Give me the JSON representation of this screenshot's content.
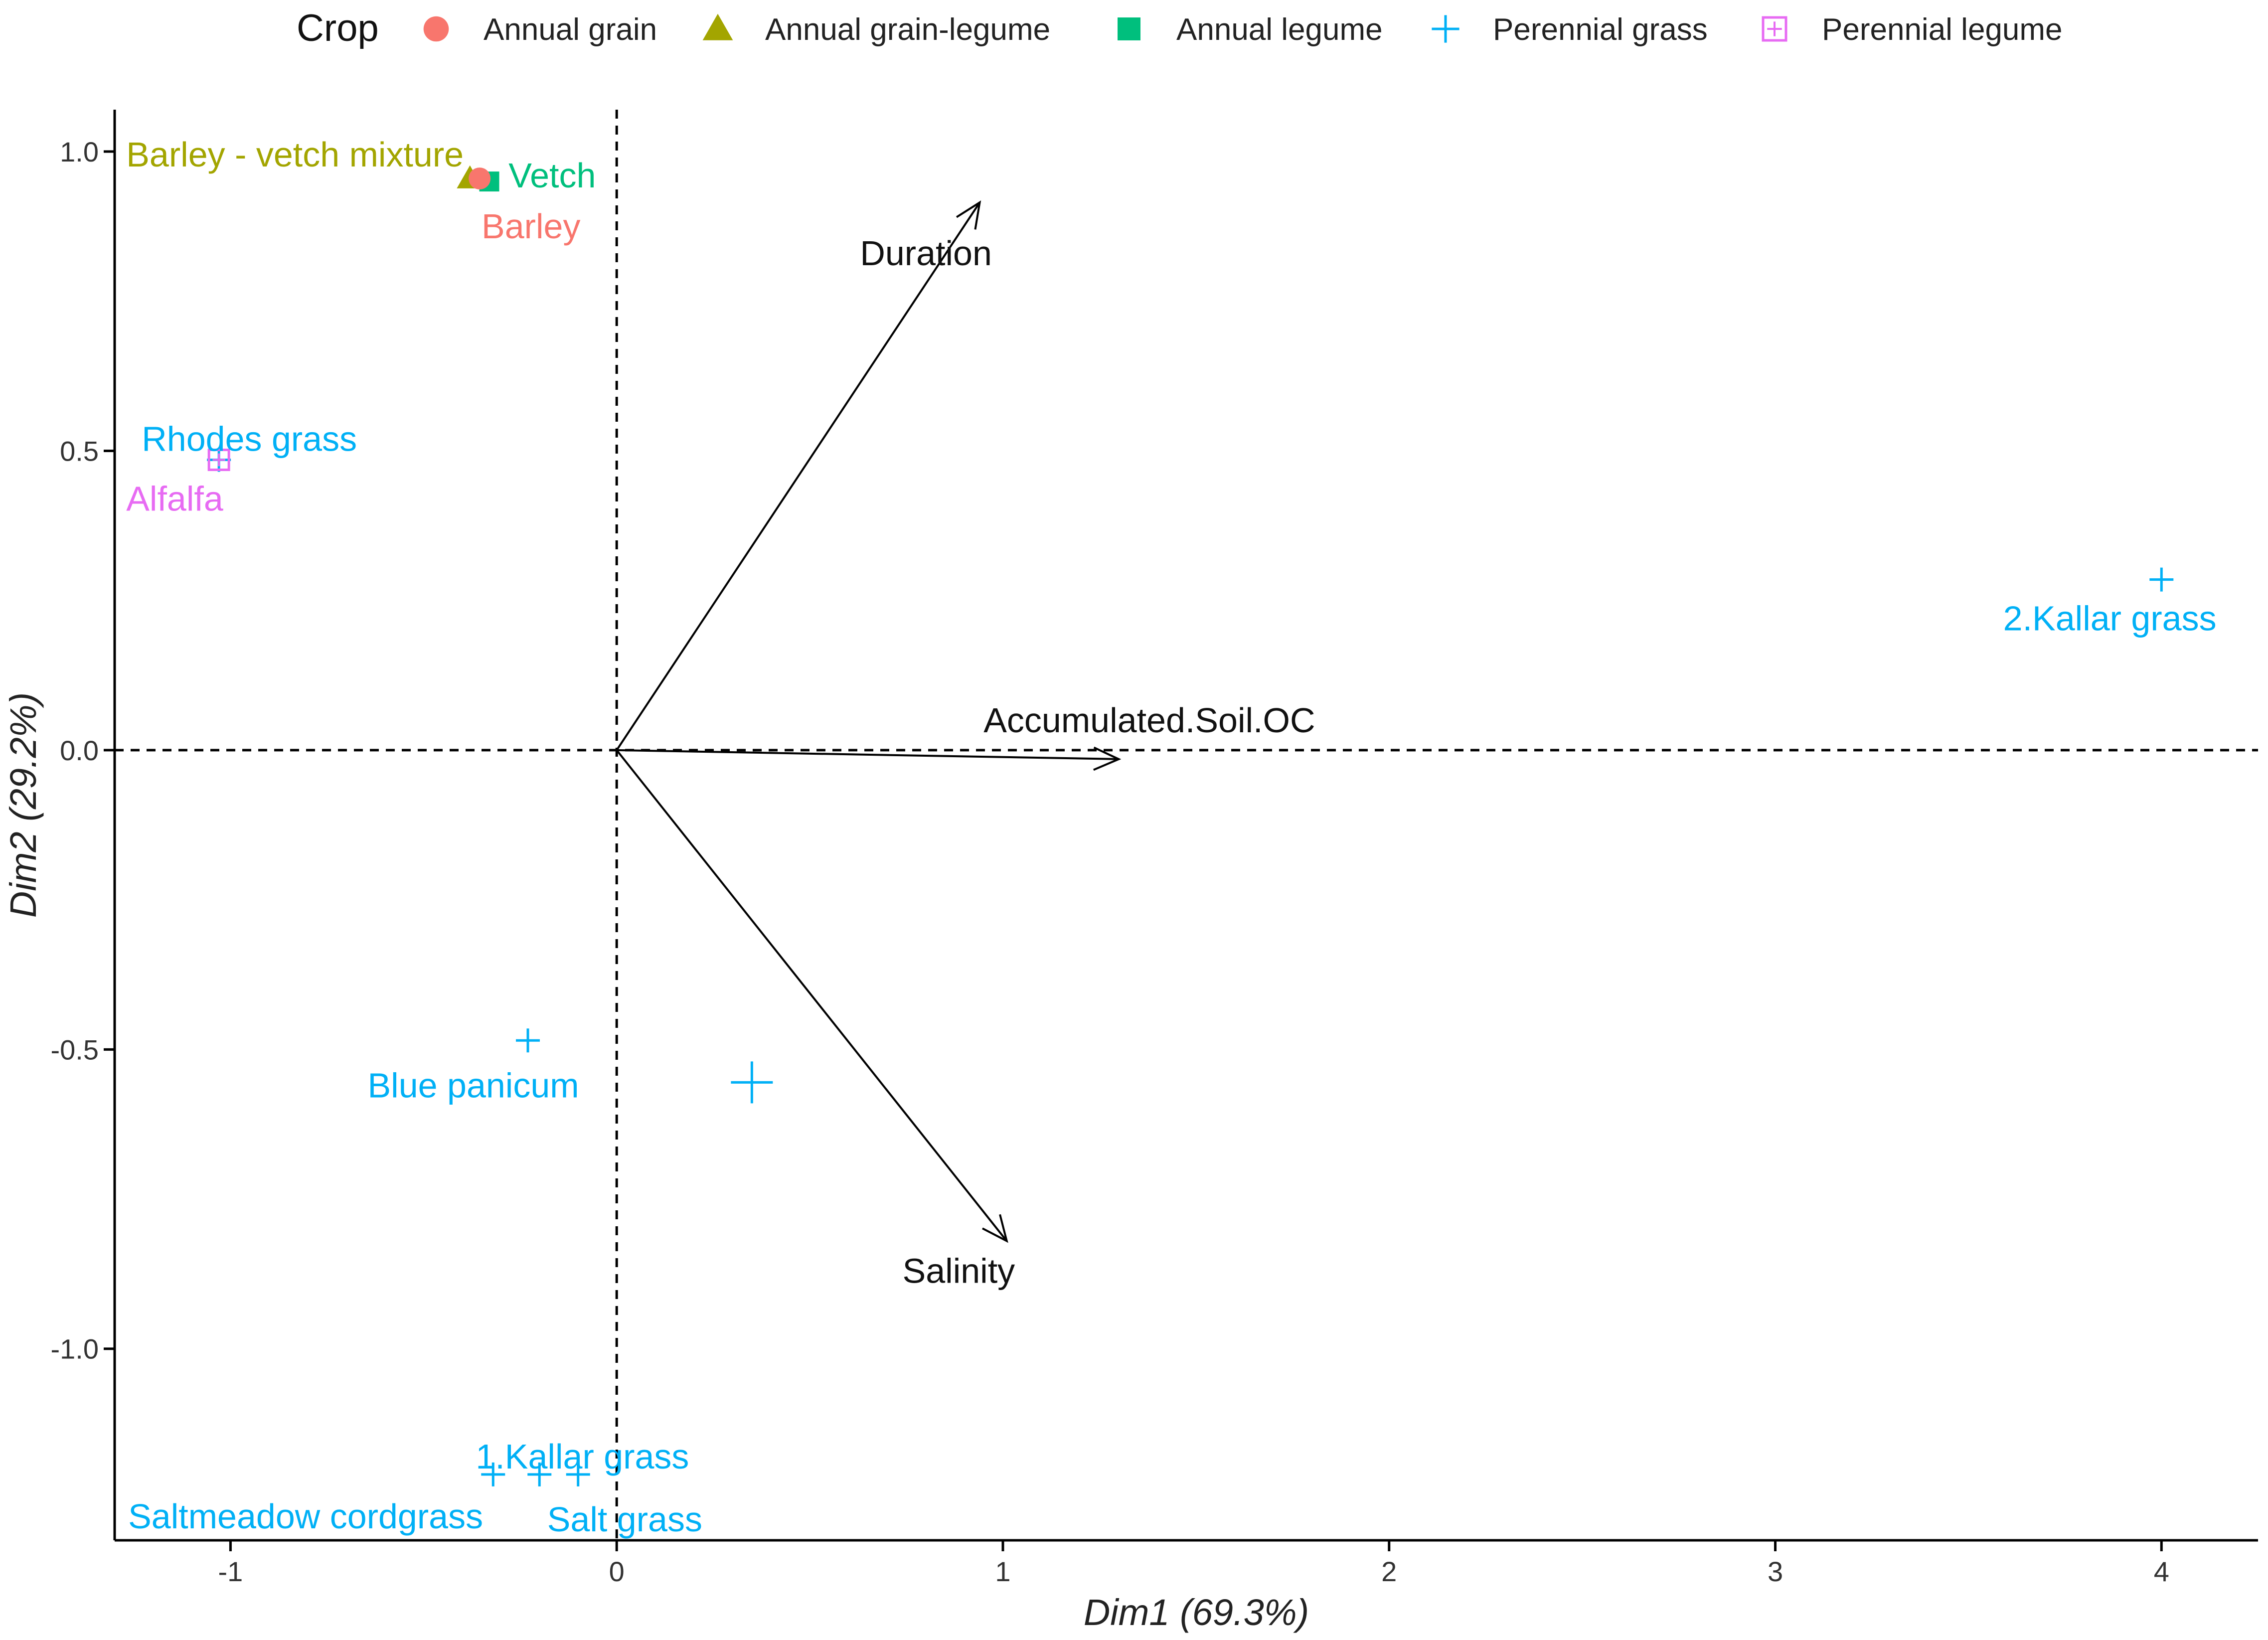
{
  "chart_data": {
    "type": "scatter",
    "subtype": "pca-biplot",
    "xlabel": "Dim1 (69.3%)",
    "ylabel": "Dim2 (29.2%)",
    "xlim": [
      -1.3,
      4.25
    ],
    "ylim": [
      -1.32,
      1.07
    ],
    "x_ticks": [
      -1,
      0,
      1,
      2,
      3,
      4
    ],
    "x_tick_labels": [
      "-1",
      "0",
      "1",
      "2",
      "3",
      "4"
    ],
    "y_ticks": [
      -1.0,
      -0.5,
      0.0,
      0.5,
      1.0
    ],
    "y_tick_labels": [
      "-1.0",
      "-0.5",
      "0.0",
      "0.5",
      "1.0"
    ],
    "legend": {
      "title": "Crop",
      "position": "top",
      "entries": [
        {
          "name": "Annual grain",
          "color": "#F8766D",
          "shape": "circle"
        },
        {
          "name": "Annual grain-legume",
          "color": "#A3A500",
          "shape": "triangle"
        },
        {
          "name": "Annual legume",
          "color": "#00BF7D",
          "shape": "square"
        },
        {
          "name": "Perennial grass",
          "color": "#00B0F6",
          "shape": "cross"
        },
        {
          "name": "Perennial legume",
          "color": "#E76BF3",
          "shape": "boxed"
        }
      ]
    },
    "points": [
      {
        "label": "Barley - vetch mixture",
        "x": -0.38,
        "y": 0.955,
        "group": "Annual grain-legume",
        "label_x": -1.27,
        "label_y": 0.975
      },
      {
        "label": "Vetch",
        "x": -0.33,
        "y": 0.95,
        "group": "Annual legume",
        "label_x": -0.28,
        "label_y": 0.94
      },
      {
        "label": "Barley",
        "x": -0.355,
        "y": 0.955,
        "group": "Annual grain",
        "label_x": -0.35,
        "label_y": 0.855
      },
      {
        "label": "Rhodes grass",
        "x": -1.03,
        "y": 0.485,
        "group": "Perennial grass",
        "label_x": -1.23,
        "label_y": 0.5
      },
      {
        "label": "Alfalfa",
        "x": -1.03,
        "y": 0.485,
        "group": "Perennial legume",
        "label_x": -1.27,
        "label_y": 0.4
      },
      {
        "label": "2.Kallar grass",
        "x": 4.0,
        "y": 0.285,
        "group": "Perennial grass",
        "label_x": 3.59,
        "label_y": 0.2
      },
      {
        "label": "Blue panicum",
        "x": -0.23,
        "y": -0.485,
        "group": "Perennial grass",
        "label_x": -0.645,
        "label_y": -0.58
      },
      {
        "label": "1.Kallar grass",
        "x": -0.2,
        "y": -1.21,
        "group": "Perennial grass",
        "label_x": -0.365,
        "label_y": -1.2
      },
      {
        "label": "Saltmeadow cordgrass",
        "x": -0.32,
        "y": -1.21,
        "group": "Perennial grass",
        "label_x": -1.265,
        "label_y": -1.3
      },
      {
        "label": "Salt grass",
        "x": -0.1,
        "y": -1.21,
        "group": "Perennial grass",
        "label_x": -0.18,
        "label_y": -1.305
      },
      {
        "label": "",
        "x": 0.35,
        "y": -0.555,
        "group": "Perennial grass",
        "size": "large"
      }
    ],
    "variables": [
      {
        "name": "Duration",
        "x": 0.94,
        "y": 0.915,
        "label_x": 0.63,
        "label_y": 0.81
      },
      {
        "name": "Accumulated.Soil.OC",
        "x": 1.3,
        "y": -0.015,
        "label_x": 0.95,
        "label_y": 0.03
      },
      {
        "name": "Salinity",
        "x": 1.01,
        "y": -0.82,
        "label_x": 0.74,
        "label_y": -0.89
      }
    ],
    "reference_lines": {
      "x": 0,
      "y": 0,
      "style": "dashed"
    }
  }
}
